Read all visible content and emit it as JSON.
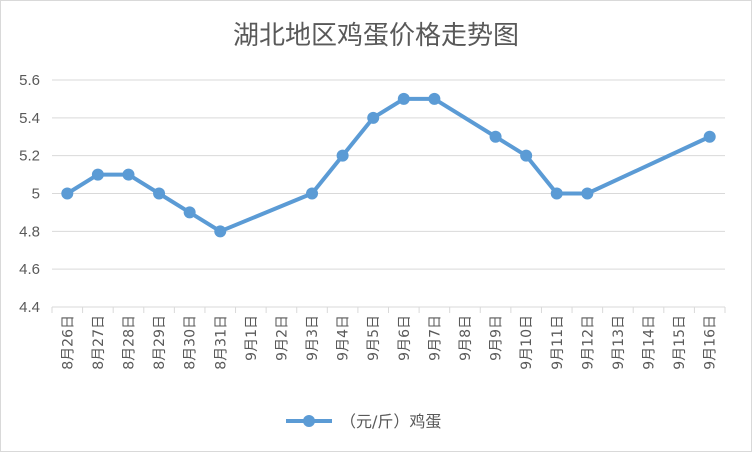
{
  "chart_data": {
    "type": "line",
    "title": "湖北地区鸡蛋价格走势图",
    "xlabel": "",
    "ylabel": "",
    "categories": [
      "8月26日",
      "8月27日",
      "8月28日",
      "8月29日",
      "8月30日",
      "8月31日",
      "9月1日",
      "9月2日",
      "9月3日",
      "9月4日",
      "9月5日",
      "9月6日",
      "9月7日",
      "9月8日",
      "9月9日",
      "9月10日",
      "9月11日",
      "9月12日",
      "9月13日",
      "9月14日",
      "9月15日",
      "9月16日"
    ],
    "ylim": [
      4.4,
      5.6
    ],
    "yticks": [
      "4.4",
      "4.6",
      "4.8",
      "5",
      "5.2",
      "5.4",
      "5.6"
    ],
    "grid": true,
    "legend_position": "bottom",
    "series": [
      {
        "name": "（元/斤）鸡蛋",
        "color": "#5b9bd5",
        "values": [
          5.0,
          5.1,
          5.1,
          5.0,
          4.9,
          4.8,
          null,
          null,
          5.0,
          5.2,
          5.4,
          5.5,
          5.5,
          null,
          5.3,
          5.2,
          5.0,
          5.0,
          null,
          null,
          null,
          5.3
        ]
      }
    ]
  }
}
